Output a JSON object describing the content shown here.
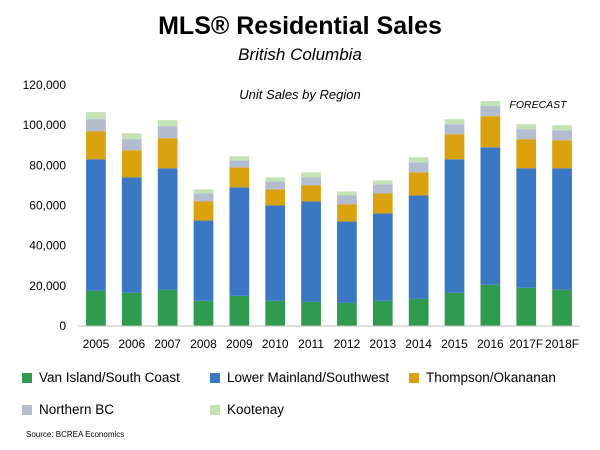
{
  "title": "MLS® Residential Sales",
  "subtitle": "British Columbia",
  "source": "Source: BCREA Economics",
  "chart_data": {
    "type": "bar",
    "stacked": true,
    "title": "Unit Sales by Region",
    "annotation": "FORECAST",
    "categories": [
      "2005",
      "2006",
      "2007",
      "2008",
      "2009",
      "2010",
      "2011",
      "2012",
      "2013",
      "2014",
      "2015",
      "2016",
      "2017F",
      "2018F"
    ],
    "yticks": [
      "0",
      "20,000",
      "40,000",
      "60,000",
      "80,000",
      "100,000",
      "120,000"
    ],
    "ylim": [
      0,
      120000
    ],
    "grid": false,
    "legend_position": "bottom",
    "series": [
      {
        "name": "Van Island/South Coast",
        "color": "#2e9b4e",
        "values": [
          17500,
          16500,
          18000,
          12500,
          15000,
          12500,
          12000,
          11500,
          12500,
          13500,
          16500,
          20500,
          19000,
          18000
        ]
      },
      {
        "name": "Lower Mainland/Southwest",
        "color": "#3a78c3",
        "values": [
          65500,
          57500,
          60500,
          40000,
          54000,
          47500,
          50000,
          40500,
          43500,
          51500,
          66500,
          68500,
          59500,
          60500
        ]
      },
      {
        "name": "Thompson/Okananan",
        "color": "#d9a20e",
        "values": [
          14000,
          13500,
          15000,
          9500,
          10000,
          8000,
          8000,
          8500,
          10000,
          11500,
          12500,
          15500,
          14500,
          14000
        ]
      },
      {
        "name": "Northern BC",
        "color": "#b4bcd0",
        "values": [
          6000,
          5500,
          6000,
          4000,
          3500,
          4000,
          4000,
          4500,
          4500,
          5000,
          5000,
          5000,
          5000,
          5000
        ]
      },
      {
        "name": "Kootenay",
        "color": "#c3e3b5",
        "values": [
          3500,
          3000,
          3000,
          2000,
          2000,
          2000,
          2500,
          2000,
          2000,
          2500,
          2500,
          2500,
          2500,
          2500
        ]
      }
    ]
  }
}
